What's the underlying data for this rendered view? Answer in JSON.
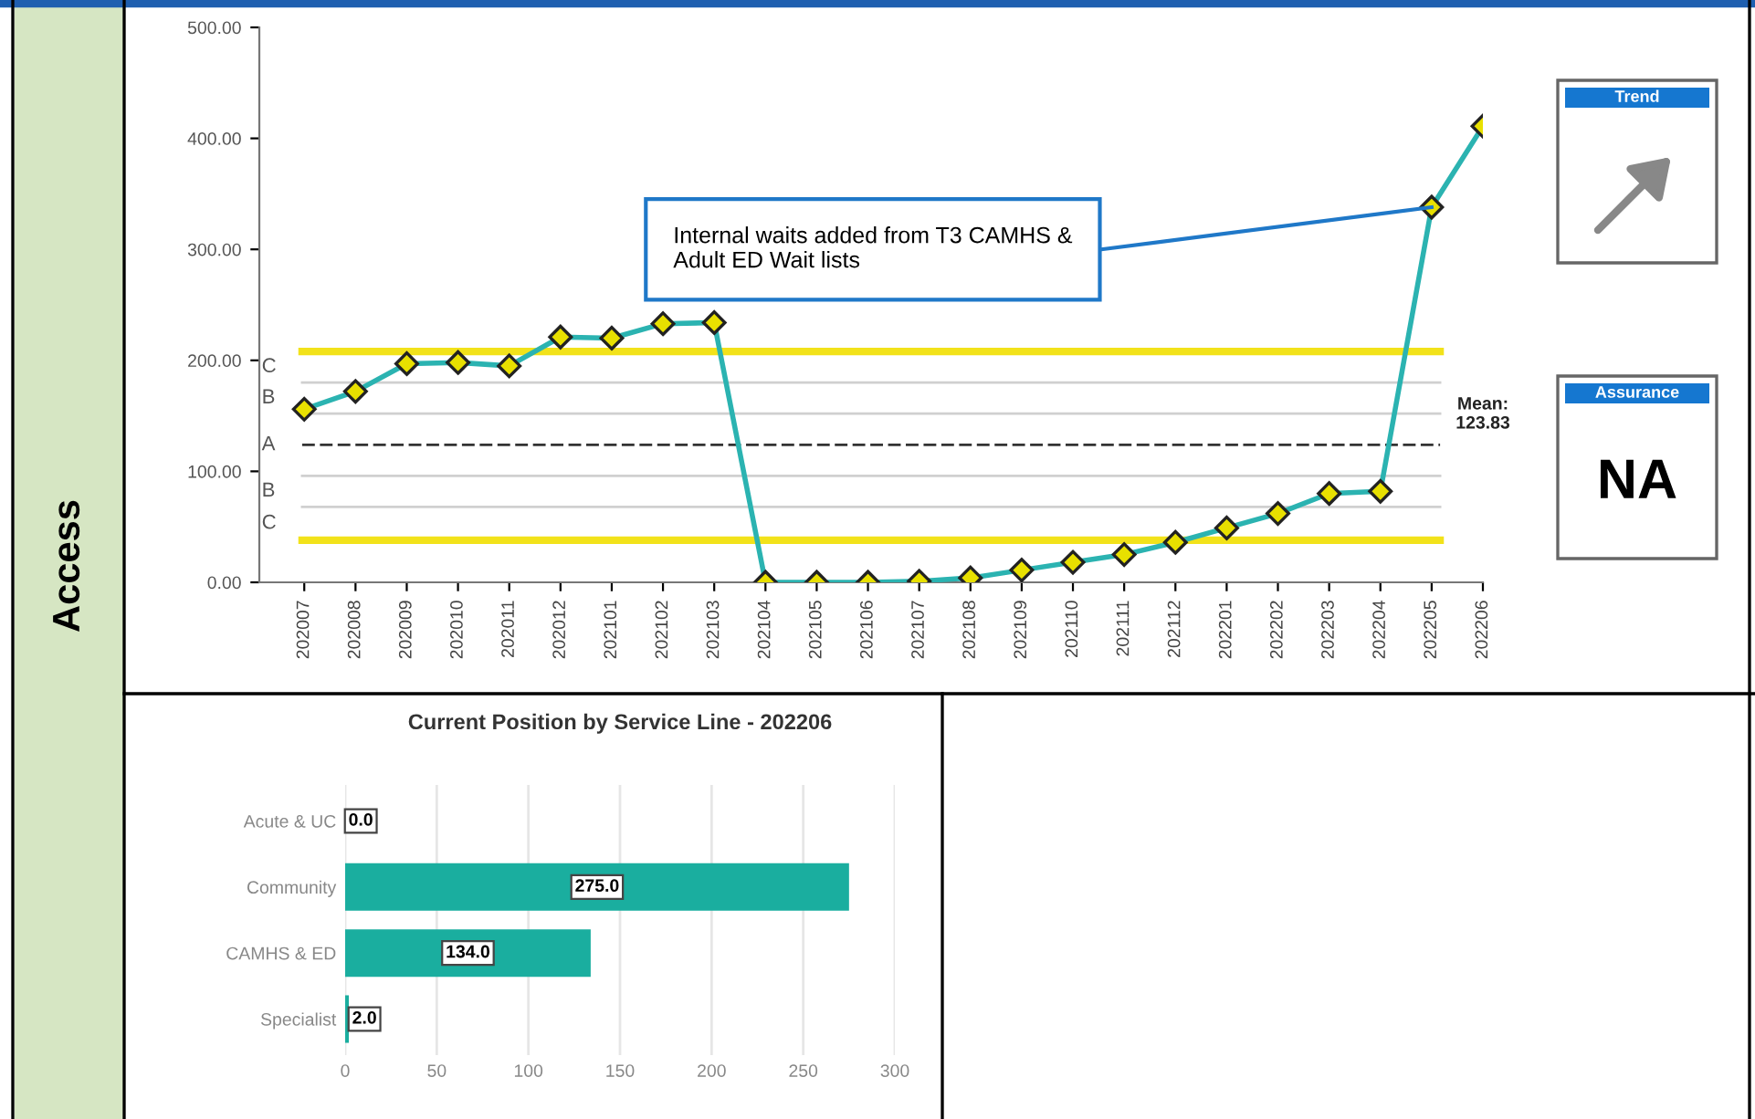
{
  "chart_data": [
    {
      "type": "line",
      "categories": [
        "202007",
        "202008",
        "202009",
        "202010",
        "202011",
        "202012",
        "202101",
        "202102",
        "202103",
        "202104",
        "202105",
        "202106",
        "202107",
        "202108",
        "202109",
        "202110",
        "202111",
        "202112",
        "202201",
        "202202",
        "202203",
        "202204",
        "202205",
        "202206"
      ],
      "series": [
        {
          "color": "#2bb3b1",
          "values": [
            156,
            172,
            197,
            198,
            195,
            221,
            220,
            233,
            234,
            0,
            0,
            0,
            1,
            4,
            11,
            18,
            25,
            36,
            49,
            62,
            80,
            82,
            338,
            411
          ]
        }
      ],
      "marker": "diamond",
      "ylim": [
        0,
        500
      ],
      "yticks": [
        {
          "value": 0,
          "label": "0.00"
        },
        {
          "value": 100,
          "label": "100.00"
        },
        {
          "value": 200,
          "label": "200.00"
        },
        {
          "value": 300,
          "label": "300.00"
        },
        {
          "value": 400,
          "label": "400.00"
        },
        {
          "value": 500,
          "label": "500.00"
        }
      ],
      "ref_lines": [
        {
          "axis": "y",
          "value": 208,
          "color": "#f2e21a"
        },
        {
          "axis": "y",
          "value": 38,
          "color": "#f2e21a"
        },
        {
          "axis": "y",
          "value": 180,
          "color": "#d0d0d0"
        },
        {
          "axis": "y",
          "value": 152,
          "color": "#d0d0d0"
        },
        {
          "axis": "y",
          "value": 123.83,
          "label": "Mean:\n123.83",
          "color": "#333333",
          "line_style": "dashed"
        },
        {
          "axis": "y",
          "value": 96,
          "color": "#d0d0d0"
        },
        {
          "axis": "y",
          "value": 68,
          "color": "#d0d0d0"
        }
      ],
      "annotations": [
        "Internal waits added from T3 CAMHS &\nAdult ED Wait lists",
        "C",
        "B",
        "A",
        "B",
        "C"
      ],
      "grid": false,
      "legend": false
    },
    {
      "type": "bar",
      "orientation": "horizontal",
      "title": "Current Position by Service Line - 202206",
      "categories": [
        "Acute & UC",
        "Community",
        "CAMHS & ED",
        "Specialist"
      ],
      "values": [
        0,
        275,
        134,
        2
      ],
      "color": "#1aae9f",
      "value_labels": [
        "0.0",
        "275.0",
        "134.0",
        "2.0"
      ],
      "xlim": [
        0,
        300
      ],
      "xticks": [
        0,
        50,
        100,
        150,
        200,
        250,
        300
      ],
      "grid": "x"
    },
    {
      "type": "other",
      "annotations": [
        "Access",
        "Trend",
        "Assurance",
        "NA"
      ]
    }
  ]
}
